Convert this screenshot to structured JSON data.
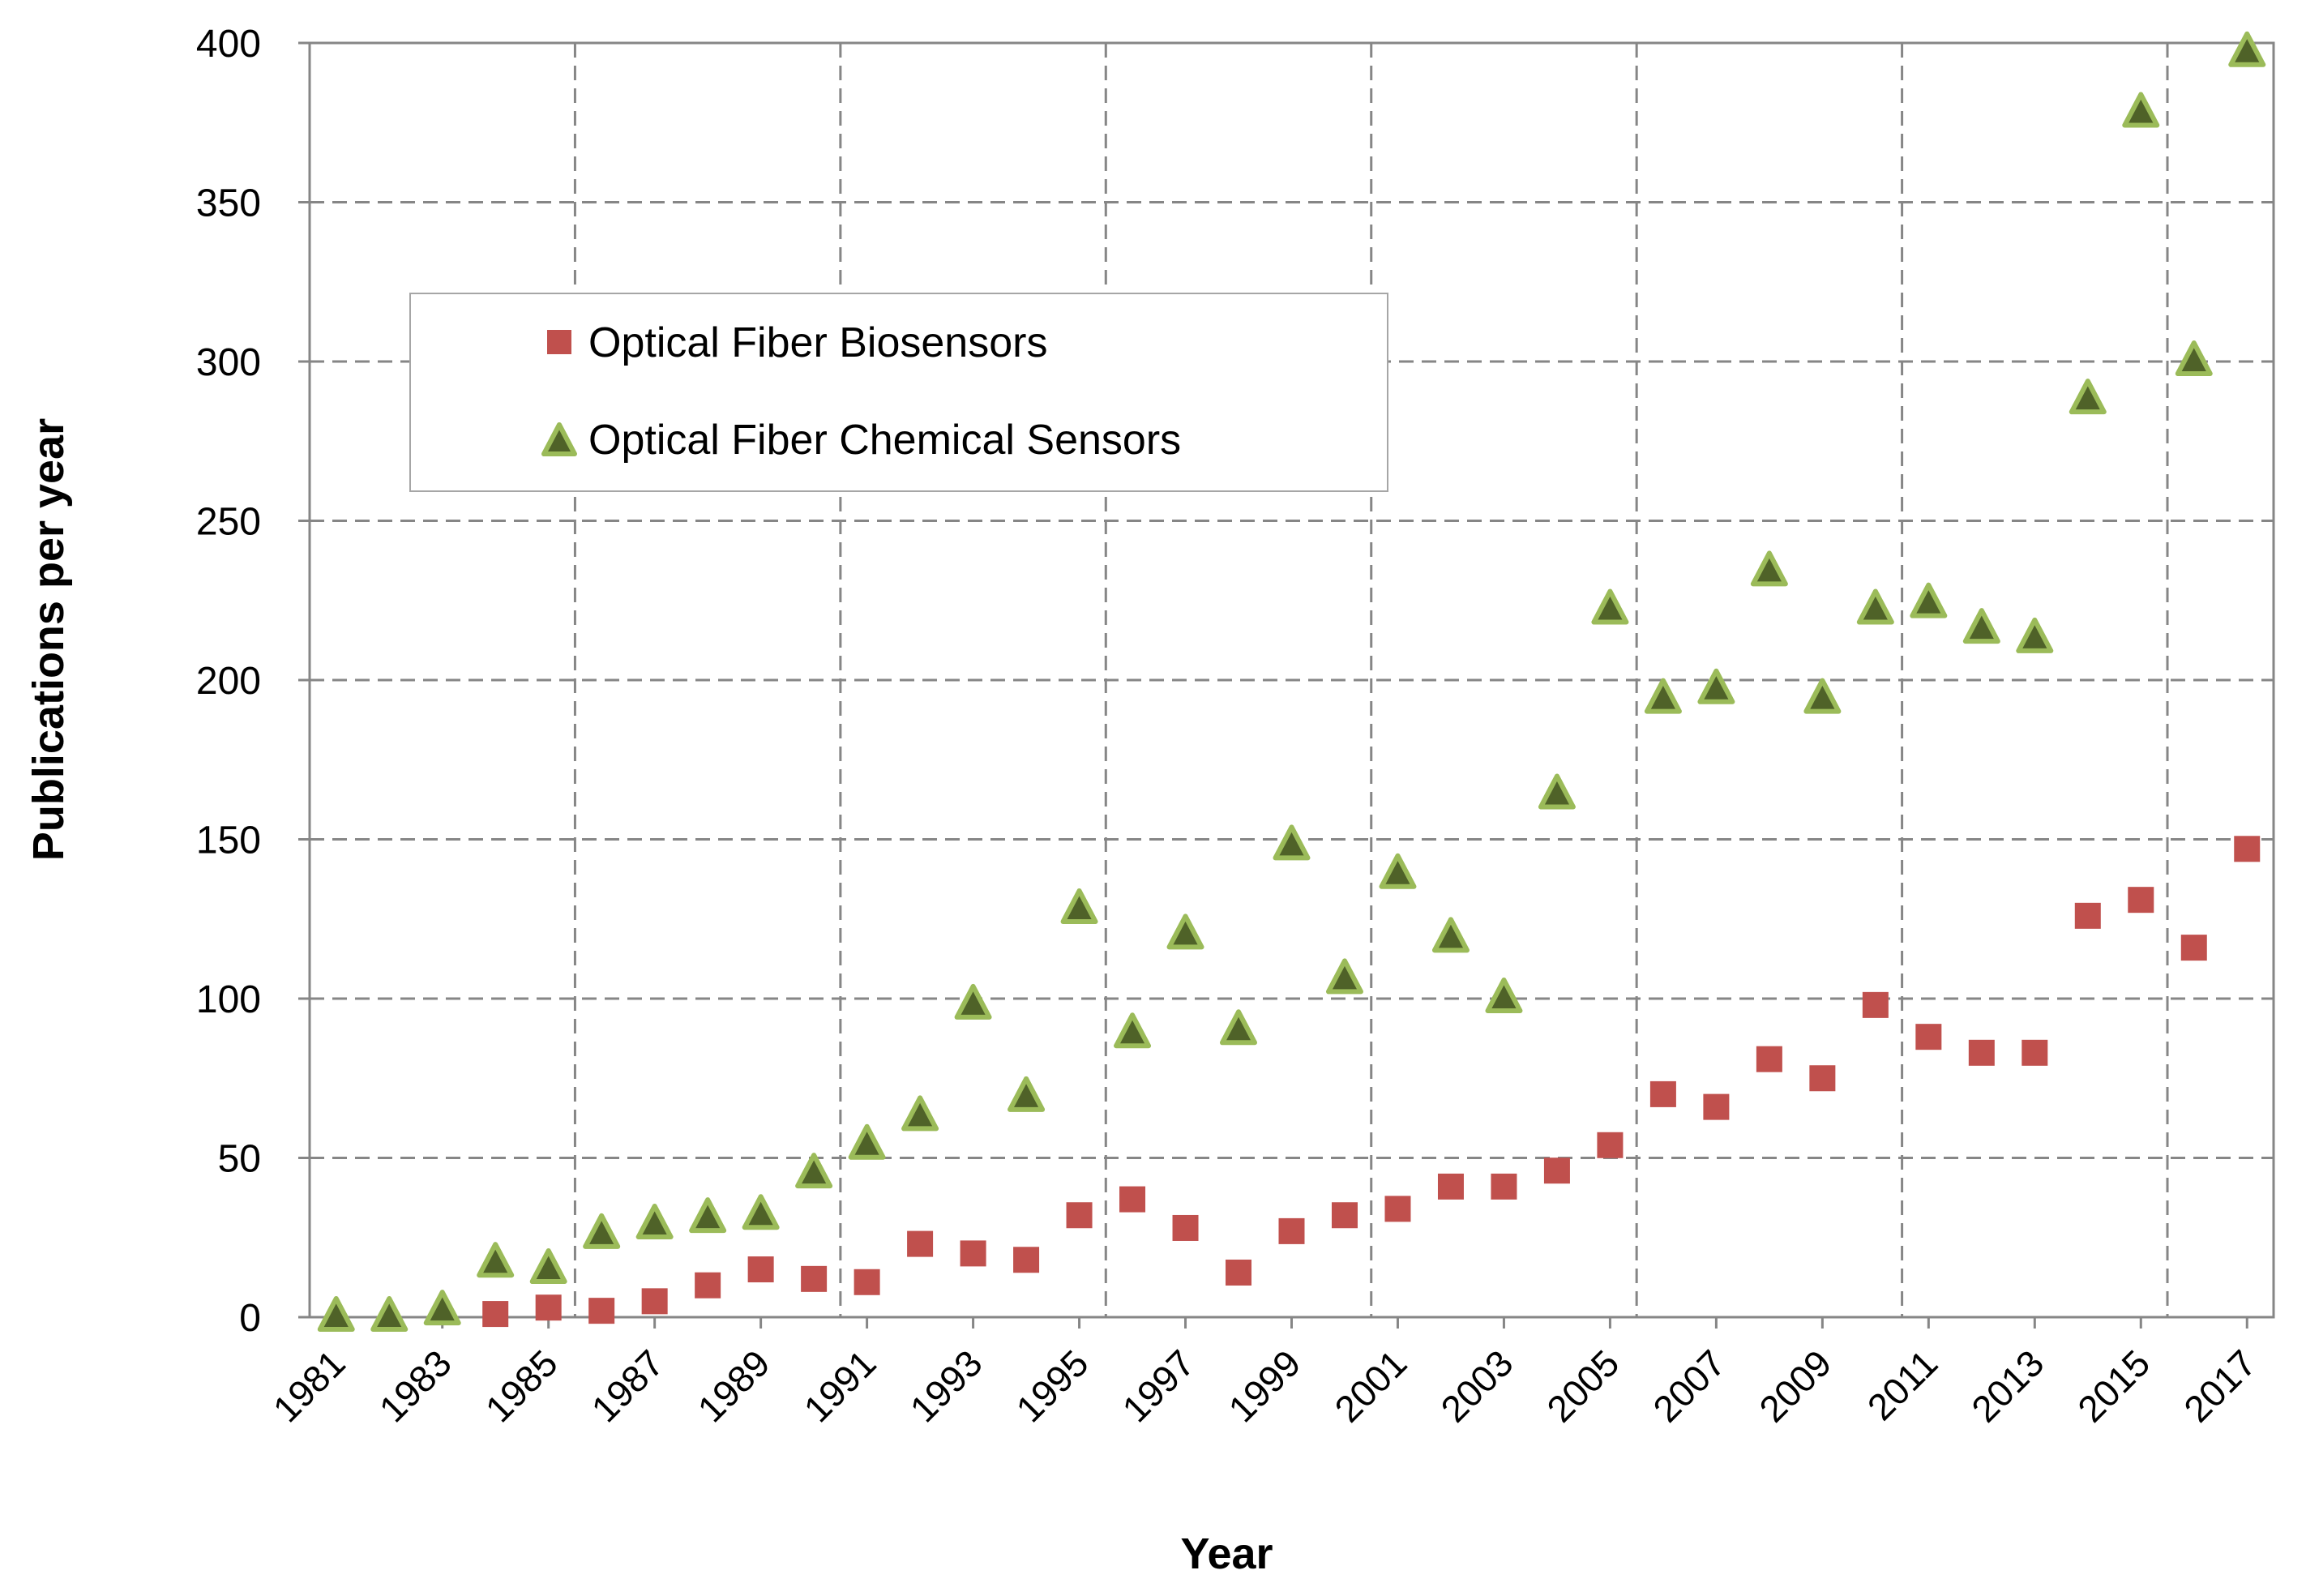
{
  "chart_data": {
    "type": "scatter",
    "xlabel": "Year",
    "ylabel": "Publications per year",
    "xlim": [
      1981,
      2017
    ],
    "ylim": [
      0,
      400
    ],
    "x_ticks": [
      "1981",
      "1983",
      "1985",
      "1987",
      "1989",
      "1991",
      "1993",
      "1995",
      "1997",
      "1999",
      "2001",
      "2003",
      "2005",
      "2007",
      "2009",
      "2011",
      "2013",
      "2015",
      "2017"
    ],
    "y_ticks": [
      "0",
      "50",
      "100",
      "150",
      "200",
      "250",
      "300",
      "350",
      "400"
    ],
    "grid": true,
    "legend": "upper-left",
    "series": [
      {
        "name": "Optical Fiber Biosensors",
        "marker": "square",
        "color": "#C0504D",
        "x": [
          1984,
          1985,
          1986,
          1987,
          1988,
          1989,
          1990,
          1991,
          1992,
          1993,
          1994,
          1995,
          1996,
          1997,
          1998,
          1999,
          2000,
          2001,
          2002,
          2003,
          2004,
          2005,
          2006,
          2007,
          2008,
          2009,
          2010,
          2011,
          2012,
          2013,
          2014,
          2015,
          2016,
          2017
        ],
        "y": [
          1,
          3,
          2,
          5,
          10,
          15,
          12,
          11,
          23,
          20,
          18,
          32,
          37,
          28,
          14,
          27,
          32,
          34,
          41,
          41,
          46,
          54,
          70,
          66,
          81,
          75,
          98,
          88,
          83,
          83,
          126,
          131,
          116,
          147
        ]
      },
      {
        "name": "Optical Fiber Chemical Sensors",
        "marker": "triangle",
        "color": "#4F6228",
        "edge_color": "#9BBB59",
        "x": [
          1981,
          1982,
          1983,
          1984,
          1985,
          1986,
          1987,
          1988,
          1989,
          1990,
          1991,
          1992,
          1993,
          1994,
          1995,
          1996,
          1997,
          1998,
          1999,
          2000,
          2001,
          2002,
          2003,
          2004,
          2005,
          2006,
          2007,
          2008,
          2009,
          2010,
          2011,
          2012,
          2013,
          2014,
          2015,
          2016,
          2017
        ],
        "y": [
          0,
          0,
          2,
          17,
          15,
          26,
          29,
          31,
          32,
          45,
          54,
          63,
          98,
          69,
          128,
          89,
          120,
          90,
          148,
          106,
          139,
          119,
          100,
          164,
          222,
          194,
          197,
          234,
          194,
          222,
          224,
          216,
          213,
          288,
          378,
          300,
          397
        ]
      }
    ]
  }
}
